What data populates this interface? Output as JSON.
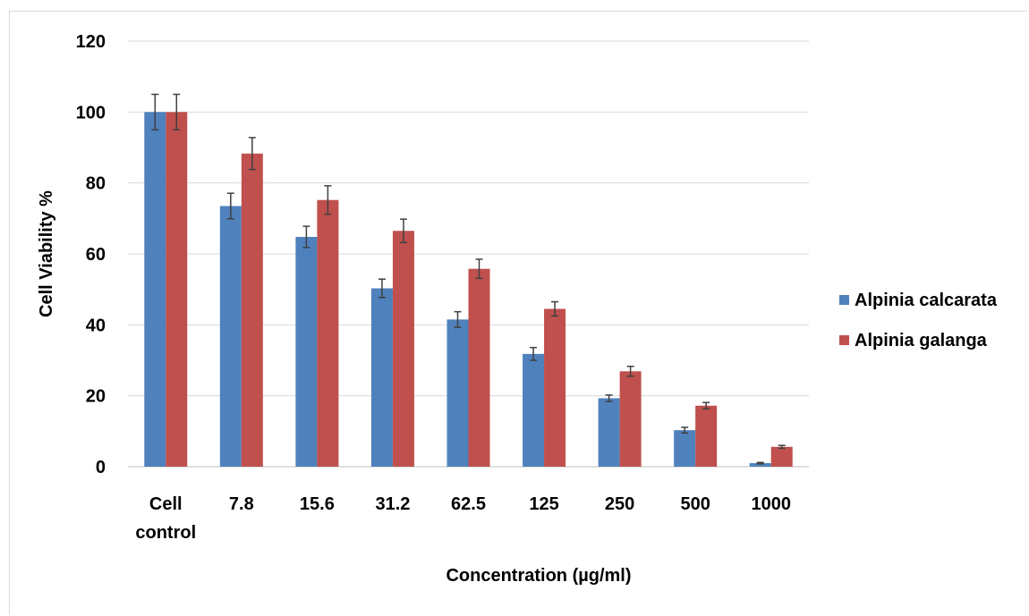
{
  "chart_data": {
    "type": "bar",
    "title": "",
    "xlabel": "Concentration (µg/ml)",
    "ylabel": "Cell Viability %",
    "ylim": [
      0,
      120
    ],
    "yticks": [
      "0",
      "20",
      "40",
      "60",
      "80",
      "100",
      "120"
    ],
    "grid": true,
    "legend_position": "right",
    "categories": [
      [
        "Cell",
        "control"
      ],
      [
        "7.8"
      ],
      [
        "15.6"
      ],
      [
        "31.2"
      ],
      [
        "62.5"
      ],
      [
        "125"
      ],
      [
        "250"
      ],
      [
        "500"
      ],
      [
        "1000"
      ]
    ],
    "series": [
      {
        "name": "Alpinia calcarata",
        "color": "#4f81bd",
        "values": [
          100,
          73.5,
          64.8,
          50.3,
          41.5,
          31.8,
          19.3,
          10.3,
          1.0
        ],
        "errors": [
          5,
          3.6,
          3.0,
          2.6,
          2.2,
          1.8,
          0.9,
          0.8,
          0.2
        ]
      },
      {
        "name": "Alpinia galanga",
        "color": "#c0504d",
        "values": [
          100,
          88.3,
          75.2,
          66.5,
          55.8,
          44.5,
          26.9,
          17.2,
          5.6
        ],
        "errors": [
          5,
          4.5,
          4.0,
          3.3,
          2.7,
          2.0,
          1.4,
          0.9,
          0.4
        ]
      }
    ]
  }
}
